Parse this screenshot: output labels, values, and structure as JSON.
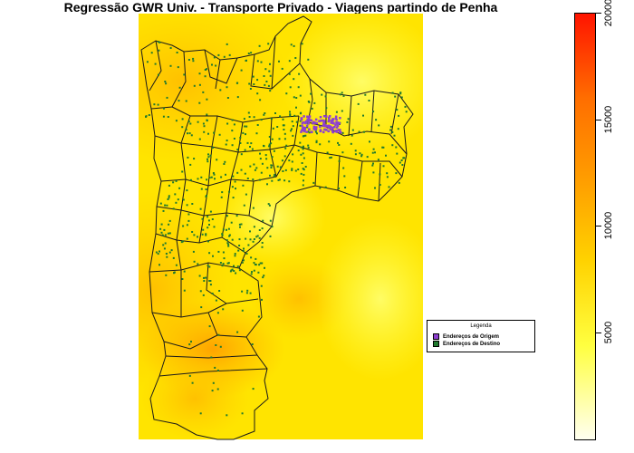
{
  "title": "Regressão GWR Univ. - Transporte Privado - Viagens partindo de Penha",
  "legend": {
    "title": "Legenda",
    "items": [
      {
        "label": "Endereços de Origem",
        "color": "#8e3fd0"
      },
      {
        "label": "Endereços de Destino",
        "color": "#1f7a2e"
      }
    ]
  },
  "colorbar": {
    "min": 0,
    "max": 20000,
    "ticks": [
      {
        "value": 5000,
        "label": "5000"
      },
      {
        "value": 10000,
        "label": "10000"
      },
      {
        "value": 15000,
        "label": "15000"
      },
      {
        "value": 20000,
        "label": "20000"
      }
    ],
    "colors": [
      "#fffff0",
      "#ffff40",
      "#ffd200",
      "#ffa000",
      "#ff6e00",
      "#ff1400"
    ]
  },
  "map": {
    "background_color": "#ffee00",
    "boundary_color": "#1a1a1a"
  }
}
